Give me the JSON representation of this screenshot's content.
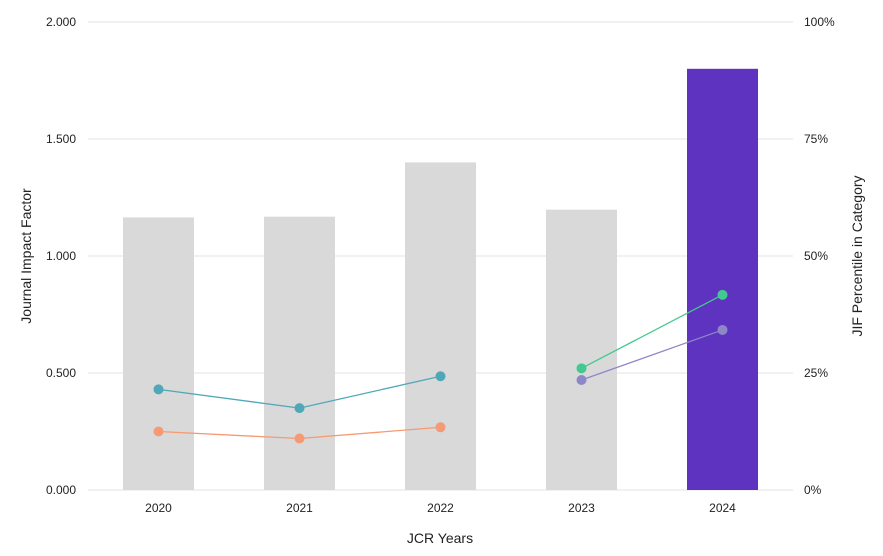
{
  "chart_data": {
    "type": "bar",
    "title": "",
    "xlabel": "JCR Years",
    "ylabel": "Journal Impact Factor",
    "y2label": "JIF Percentile in Category",
    "categories": [
      "2020",
      "2021",
      "2022",
      "2023",
      "2024"
    ],
    "ylim": [
      0,
      2
    ],
    "y2lim": [
      0,
      100
    ],
    "yticks": [
      "0.000",
      "0.500",
      "1.000",
      "1.500",
      "2.000"
    ],
    "y2ticks": [
      "0%",
      "25%",
      "50%",
      "75%",
      "100%"
    ],
    "grid": true,
    "bars": {
      "values": [
        1.165,
        1.168,
        1.4,
        1.198,
        1.8
      ],
      "colors": [
        "#d9d9d9",
        "#d9d9d9",
        "#d9d9d9",
        "#d9d9d9",
        "#5e33bf"
      ]
    },
    "series": [
      {
        "color": "#4fa8b8",
        "points": [
          [
            0,
            21.5
          ],
          [
            1,
            17.5
          ],
          [
            2,
            24.3
          ]
        ]
      },
      {
        "color": "#f59a72",
        "points": [
          [
            0,
            12.5
          ],
          [
            1,
            11.0
          ],
          [
            2,
            13.4
          ]
        ]
      },
      {
        "color": "#42c98f",
        "points": [
          [
            3,
            26.0
          ],
          [
            4,
            41.7
          ]
        ]
      },
      {
        "color": "#8c88c8",
        "points": [
          [
            3,
            23.5
          ],
          [
            4,
            34.2
          ]
        ]
      }
    ]
  }
}
